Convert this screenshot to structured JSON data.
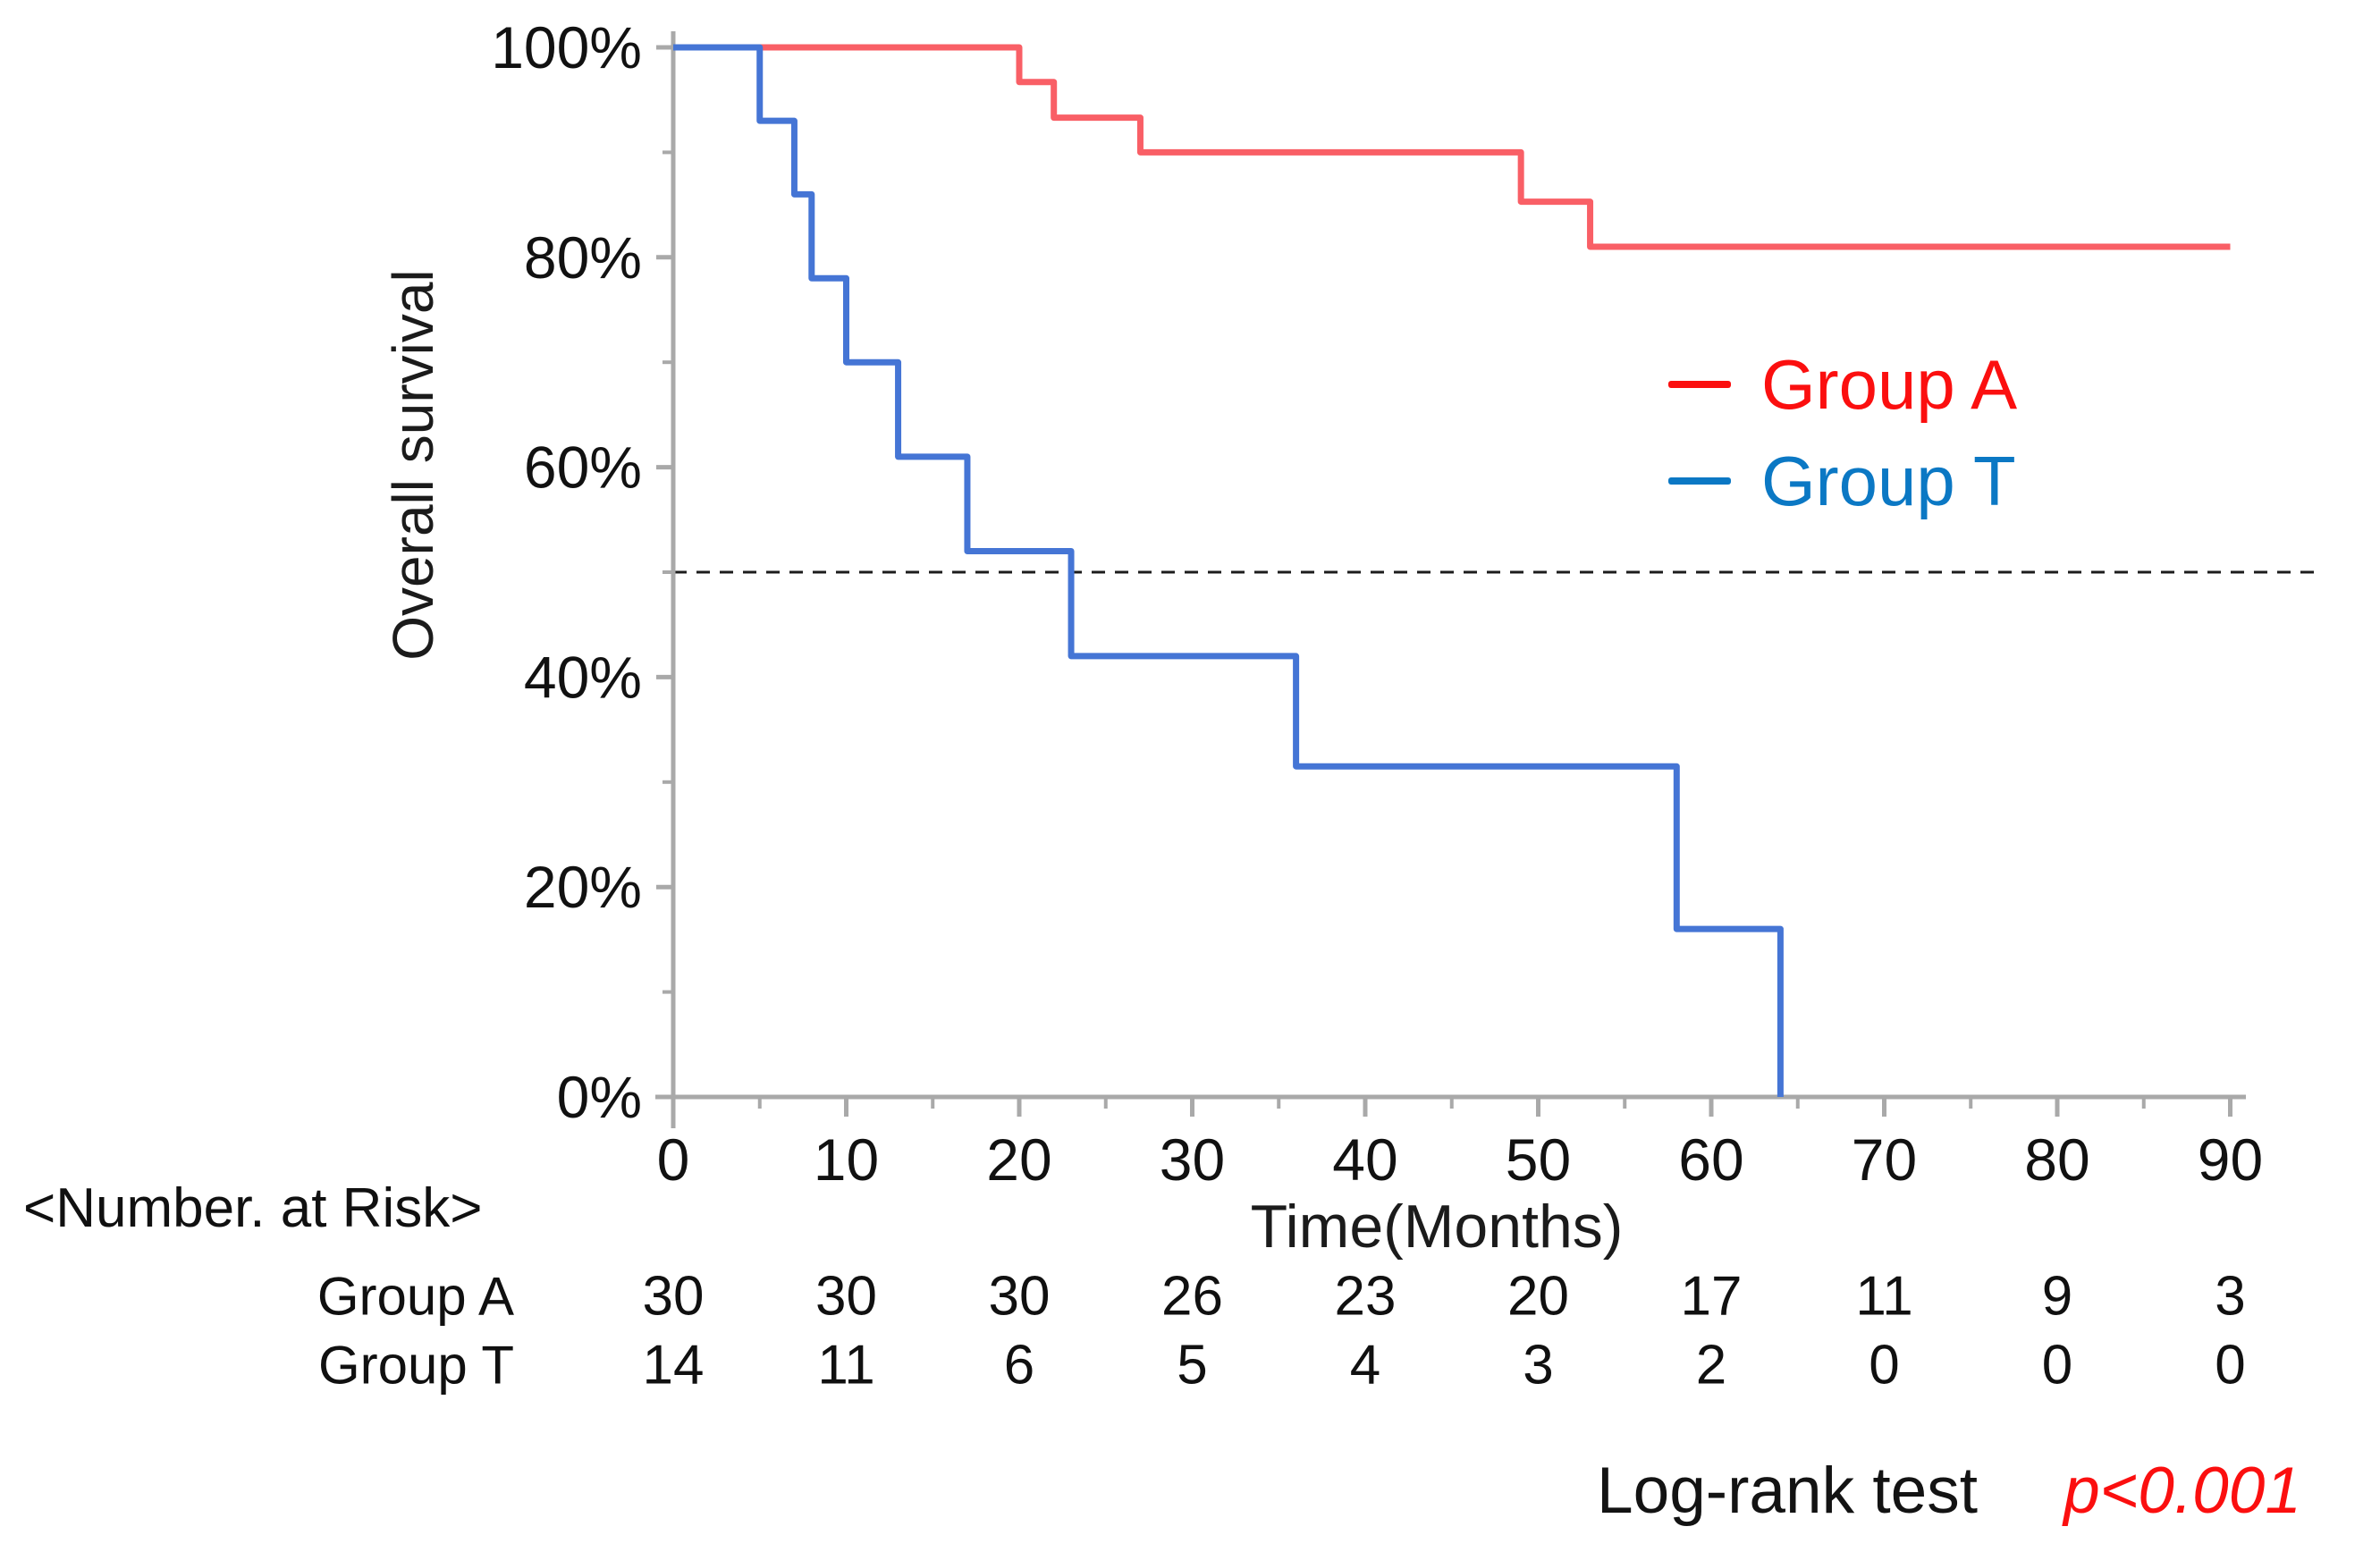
{
  "chart_data": {
    "type": "line",
    "subtype": "kaplan-meier-step",
    "title": "",
    "xlabel": "Time(Months)",
    "ylabel": "Overall survival",
    "xlim": [
      0,
      91
    ],
    "ylim": [
      0,
      100
    ],
    "x_ticks": [
      0,
      10,
      20,
      30,
      40,
      50,
      60,
      70,
      80,
      90
    ],
    "x_minor_tick_step": 5,
    "y_ticks_pct": [
      0,
      20,
      40,
      60,
      80,
      100
    ],
    "y_tick_labels": [
      "0%",
      "20%",
      "40%",
      "60%",
      "80%",
      "100%"
    ],
    "y_minor_ticks_pct": [
      10,
      30,
      50,
      70,
      90
    ],
    "grid": "off",
    "reference_line_pct": 50,
    "series": [
      {
        "name": "Group A",
        "color": "#f95f66",
        "steps_month_pct": [
          [
            0,
            100
          ],
          [
            20,
            96.7
          ],
          [
            22,
            93.3
          ],
          [
            27,
            90
          ],
          [
            49,
            85.3
          ],
          [
            53,
            81
          ],
          [
            90,
            81
          ]
        ]
      },
      {
        "name": "Group T",
        "color": "#4575d5",
        "steps_month_pct": [
          [
            0,
            100
          ],
          [
            5,
            93
          ],
          [
            7,
            86
          ],
          [
            8,
            78
          ],
          [
            10,
            70
          ],
          [
            13,
            61
          ],
          [
            17,
            52
          ],
          [
            23,
            42
          ],
          [
            36,
            31.5
          ],
          [
            58,
            16
          ],
          [
            64,
            0
          ]
        ]
      }
    ],
    "legend": {
      "position": "upper-right-inside",
      "items": [
        {
          "label": "Group A",
          "color": "#fb0f0f"
        },
        {
          "label": "Group T",
          "color": "#0b78c4"
        }
      ]
    },
    "number_at_risk": {
      "header": "<Number. at Risk>",
      "columns_months": [
        0,
        10,
        20,
        30,
        40,
        50,
        60,
        70,
        80,
        90
      ],
      "rows": [
        {
          "label": "Group A",
          "values": [
            "30",
            "30",
            "30",
            "26",
            "23",
            "20",
            "17",
            "11",
            "9",
            "3"
          ]
        },
        {
          "label": "Group T",
          "values": [
            "14",
            "11",
            "6",
            "5",
            "4",
            "3",
            "2",
            "0",
            "0",
            "0"
          ]
        }
      ]
    },
    "stats": {
      "test_label": "Log-rank test",
      "p_value": "p<0.001",
      "p_color": "#fb0f0f"
    },
    "axis_color": "#a9a9a9",
    "tick_label_color": "#111111"
  }
}
